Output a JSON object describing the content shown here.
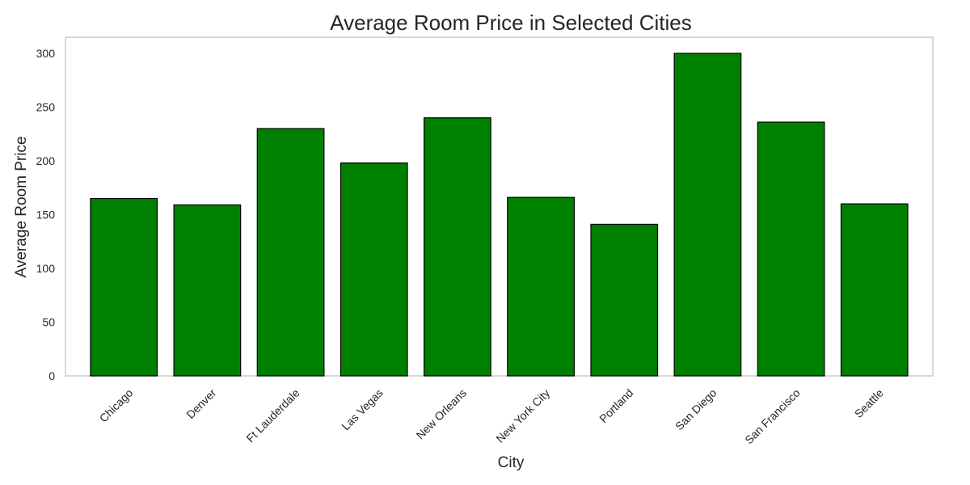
{
  "chart_data": {
    "type": "bar",
    "title": "Average Room Price in Selected Cities",
    "xlabel": "City",
    "ylabel": "Average Room Price",
    "categories": [
      "Chicago",
      "Denver",
      "Ft Lauderdale",
      "Las Vegas",
      "New Orleans",
      "New York City",
      "Portland",
      "San Diego",
      "San Francisco",
      "Seattle"
    ],
    "values": [
      165,
      159,
      230,
      198,
      240,
      166,
      141,
      300,
      236,
      160
    ],
    "ylim": [
      0,
      315
    ],
    "yticks": [
      0,
      50,
      100,
      150,
      200,
      250,
      300
    ],
    "grid": false,
    "bar_color": "#008000",
    "bar_edge_color": "#000000"
  }
}
